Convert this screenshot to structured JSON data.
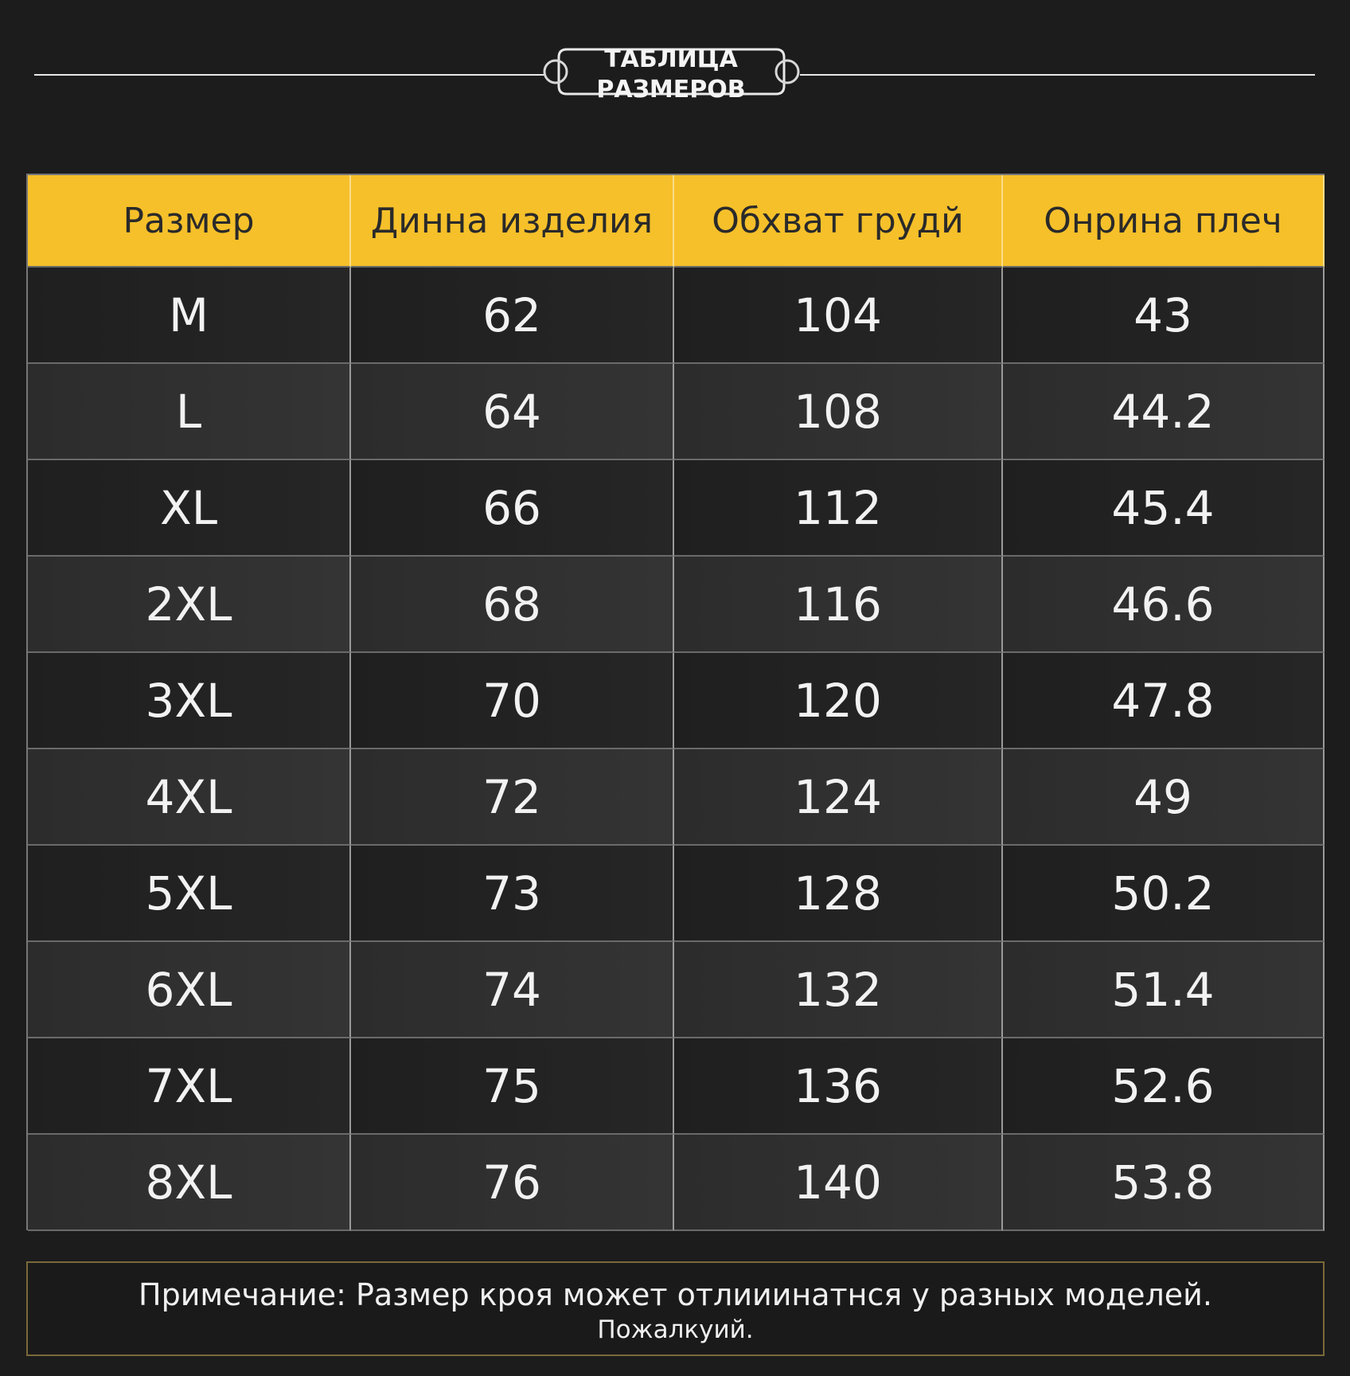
{
  "header": {
    "title_lines": [
      "ТАБЛИЦА",
      "РАЗМЕРОВ"
    ]
  },
  "table": {
    "columns": [
      "Размер",
      "Динна изделия",
      "Обхват грудй",
      "Онрина плеч"
    ],
    "rows": [
      [
        "M",
        "62",
        "104",
        "43"
      ],
      [
        "L",
        "64",
        "108",
        "44.2"
      ],
      [
        "XL",
        "66",
        "112",
        "45.4"
      ],
      [
        "2XL",
        "68",
        "116",
        "46.6"
      ],
      [
        "3XL",
        "70",
        "120",
        "47.8"
      ],
      [
        "4XL",
        "72",
        "124",
        "49"
      ],
      [
        "5XL",
        "73",
        "128",
        "50.2"
      ],
      [
        "6XL",
        "74",
        "132",
        "51.4"
      ],
      [
        "7XL",
        "75",
        "136",
        "52.6"
      ],
      [
        "8XL",
        "76",
        "140",
        "53.8"
      ]
    ]
  },
  "note": {
    "line1": "Примечание: Размер кроя может отлииинатнся у разных моделей.",
    "line2": "Пожалкуий."
  }
}
